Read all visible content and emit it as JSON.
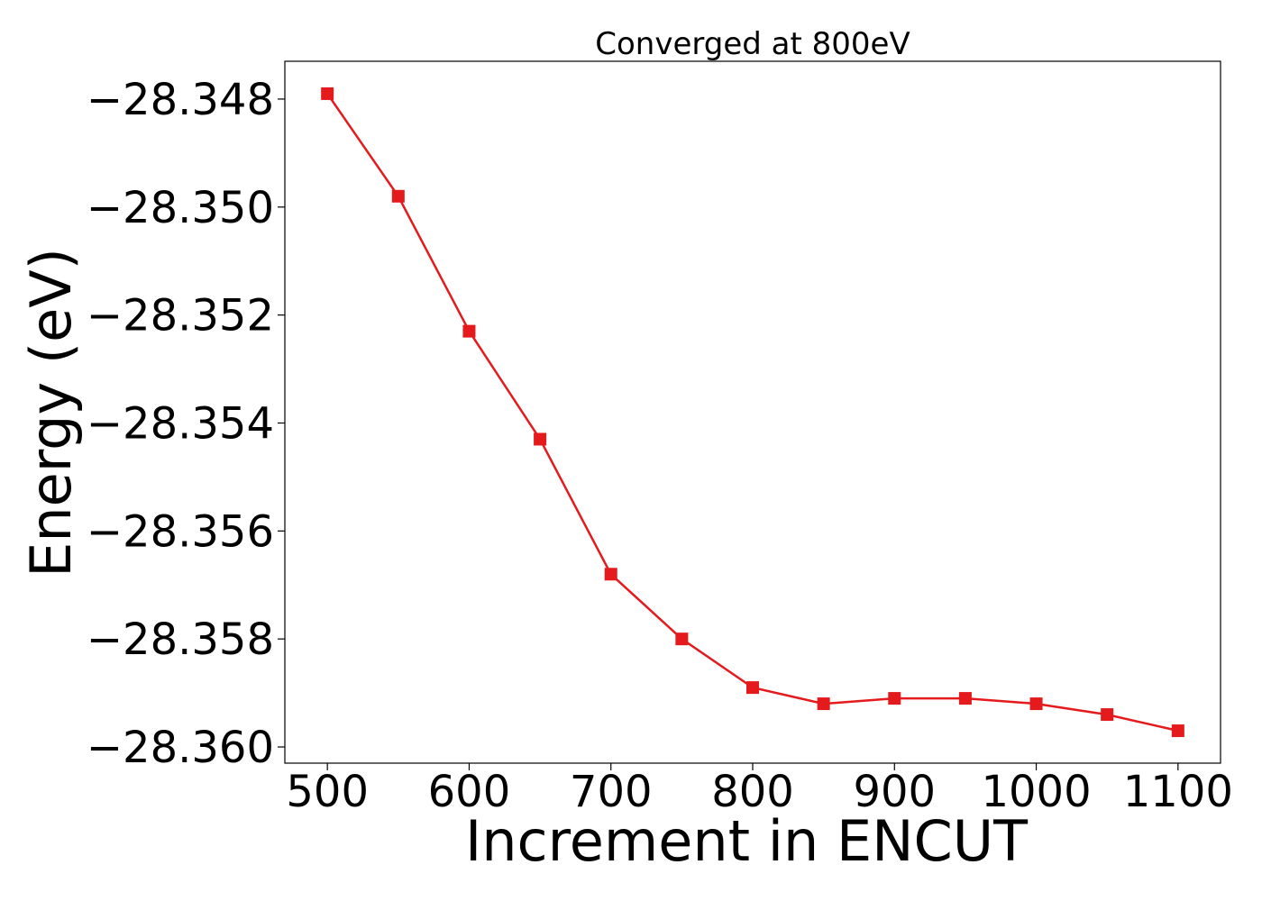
{
  "chart_data": {
    "type": "line",
    "title": "Converged at 800eV",
    "xlabel": "Increment in ENCUT",
    "ylabel": "Energy (eV)",
    "x": [
      500,
      550,
      600,
      650,
      700,
      750,
      800,
      850,
      900,
      950,
      1000,
      1050,
      1100
    ],
    "series": [
      {
        "values": [
          -28.3479,
          -28.3498,
          -28.3523,
          -28.3543,
          -28.3568,
          -28.358,
          -28.3589,
          -28.3592,
          -28.3591,
          -28.3591,
          -28.3592,
          -28.3594,
          -28.3597
        ],
        "color": "#e41a1c",
        "marker": "square"
      }
    ],
    "xlim": [
      470,
      1130
    ],
    "ylim": [
      -28.3603,
      -28.3473
    ],
    "xticks": [
      500,
      600,
      700,
      800,
      900,
      1000,
      1100
    ],
    "xtick_labels": [
      "500",
      "600",
      "700",
      "800",
      "900",
      "1000",
      "1100"
    ],
    "yticks": [
      -28.348,
      -28.35,
      -28.352,
      -28.354,
      -28.356,
      -28.358,
      -28.36
    ],
    "ytick_labels": [
      "−28.348",
      "−28.350",
      "−28.352",
      "−28.354",
      "−28.356",
      "−28.358",
      "−28.360"
    ],
    "grid": false,
    "legend": "none"
  }
}
